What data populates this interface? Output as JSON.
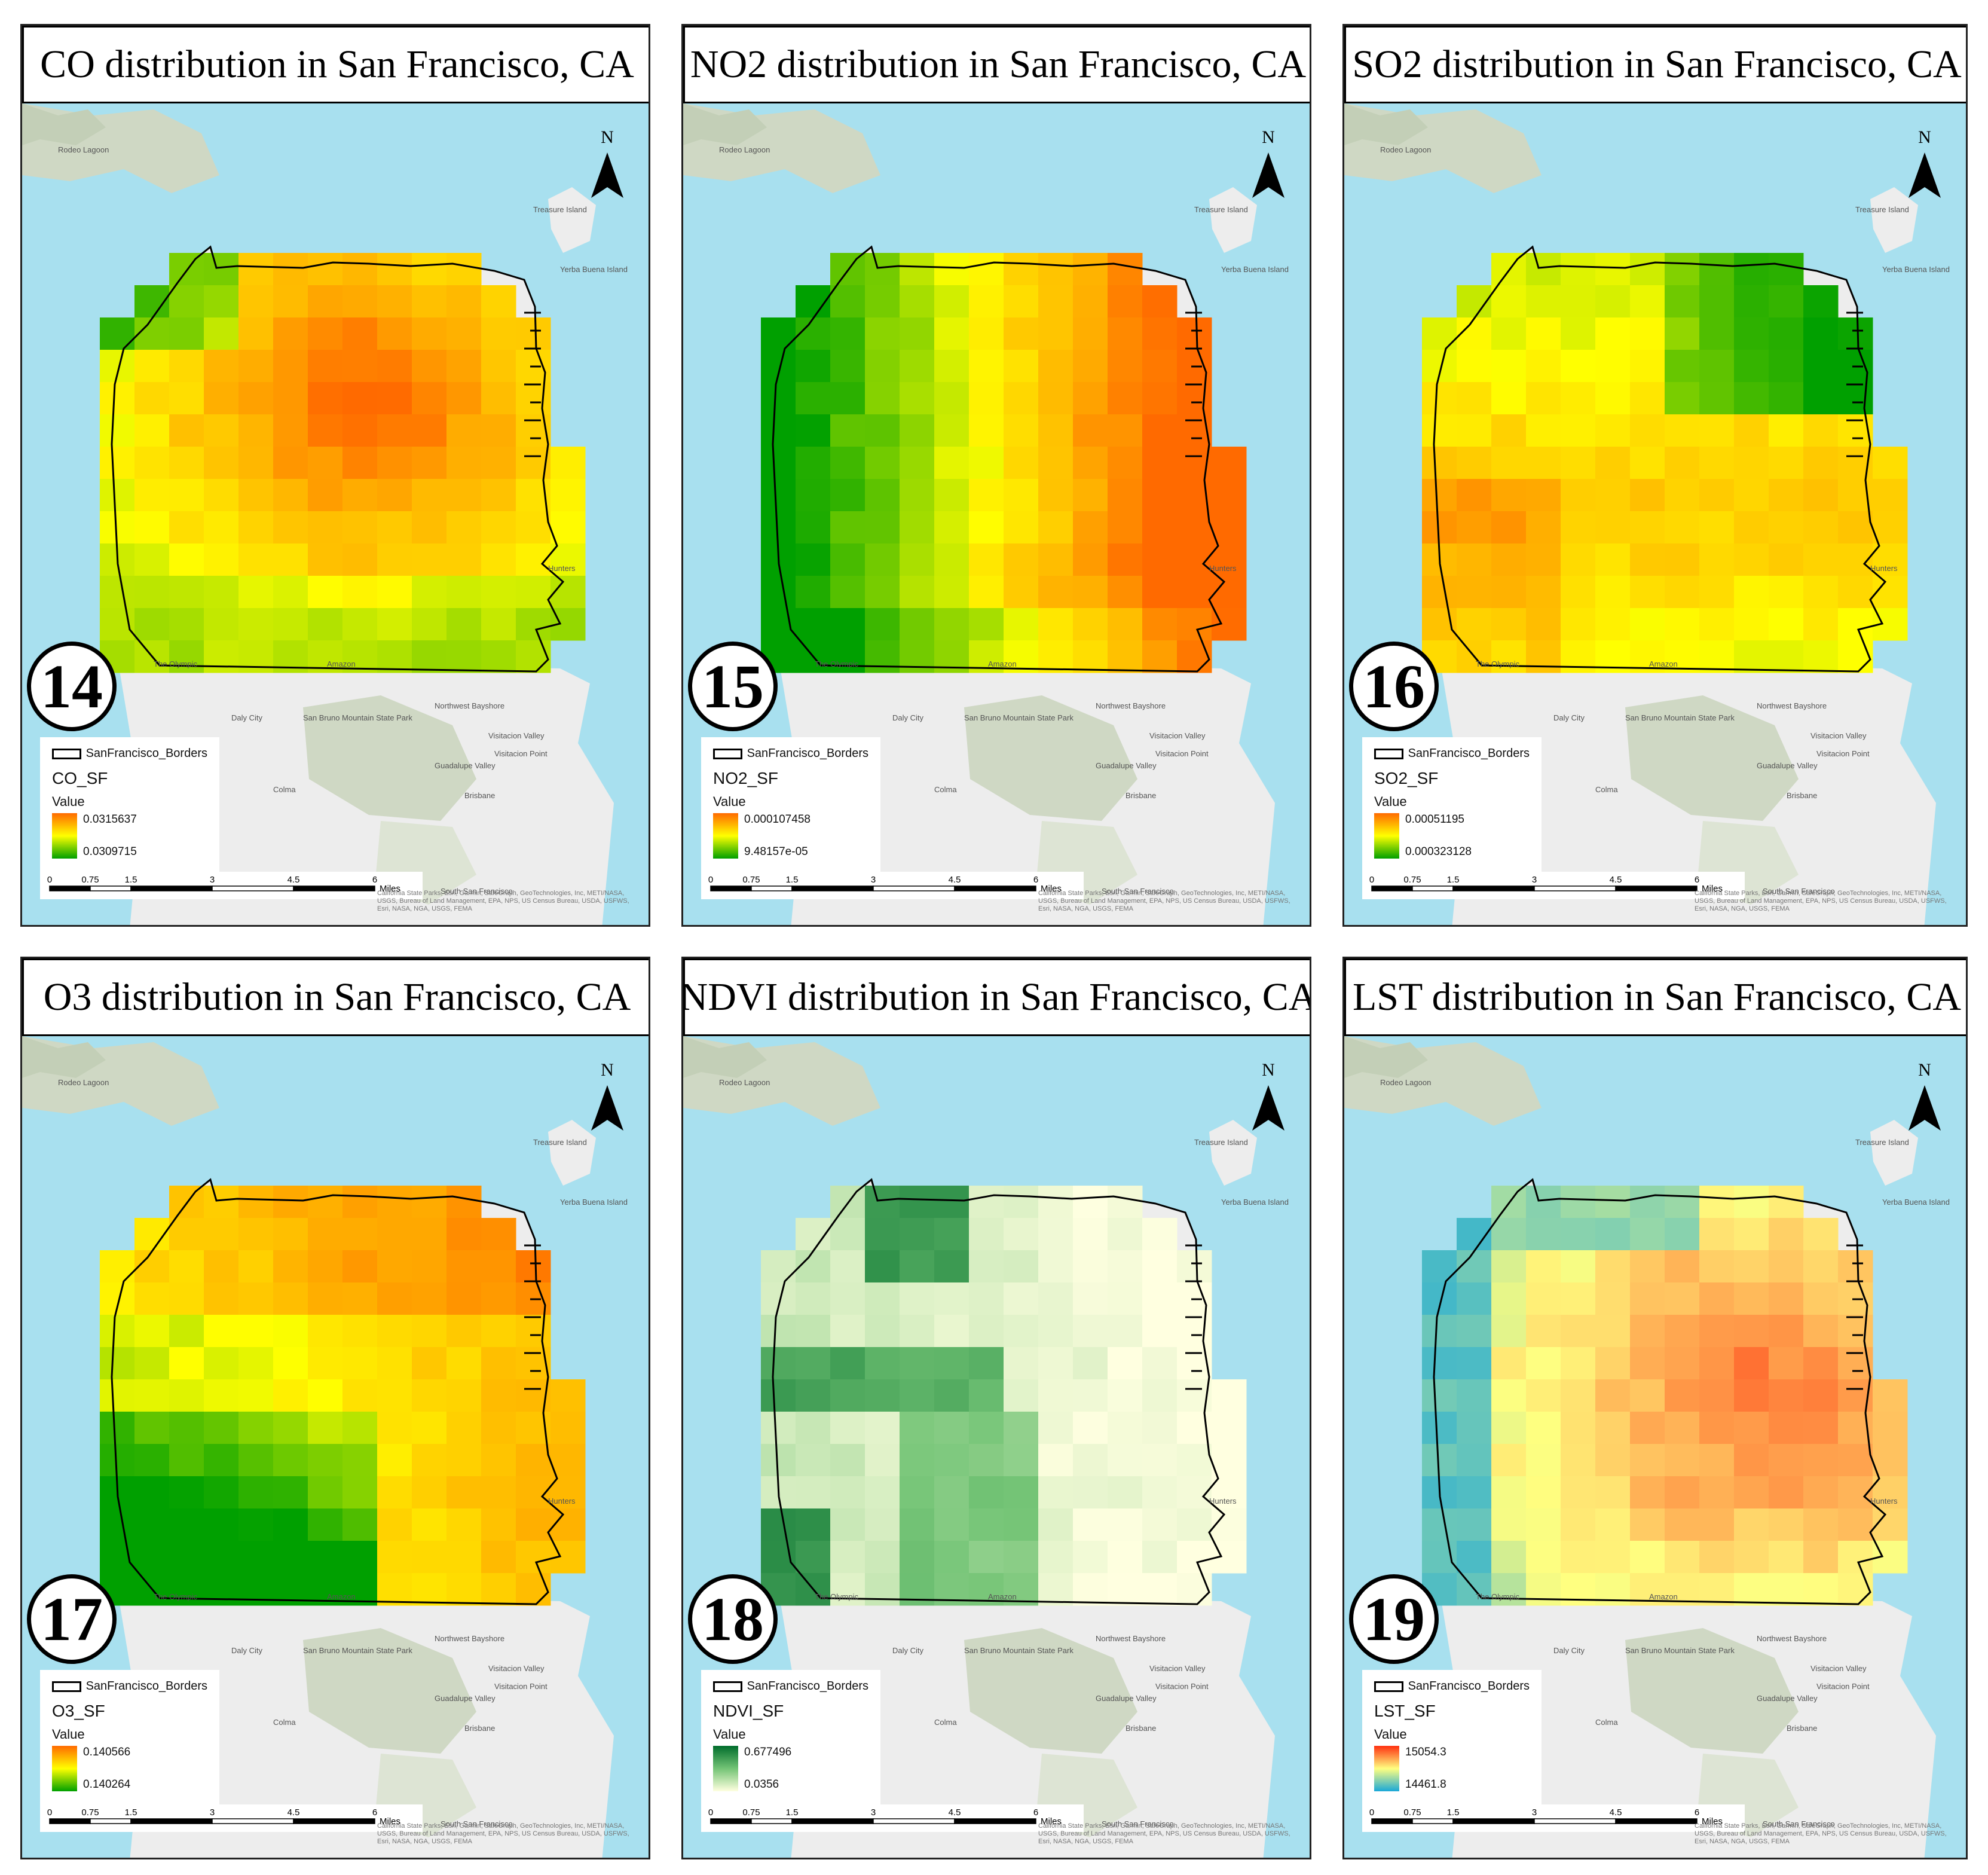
{
  "panels": [
    {
      "title": "CO distribution in San Francisco, CA",
      "number": "14",
      "layer": "CO_SF",
      "legend_border": "SanFrancisco_Borders",
      "value_label": "Value",
      "high": "0.0315637",
      "low": "0.0309715",
      "ramp": [
        "#ff6a00",
        "#ffff00",
        "#00a000"
      ],
      "field": "co"
    },
    {
      "title": "NO2 distribution in San Francisco, CA",
      "number": "15",
      "layer": "NO2_SF",
      "legend_border": "SanFrancisco_Borders",
      "value_label": "Value",
      "high": "0.000107458",
      "low": "9.48157e-05",
      "ramp": [
        "#ff6a00",
        "#ffff00",
        "#00a000"
      ],
      "field": "no2"
    },
    {
      "title": "SO2 distribution in San Francisco, CA",
      "number": "16",
      "layer": "SO2_SF",
      "legend_border": "SanFrancisco_Borders",
      "value_label": "Value",
      "high": "0.00051195",
      "low": "0.000323128",
      "ramp": [
        "#ff6a00",
        "#ffff00",
        "#00a000"
      ],
      "field": "so2"
    },
    {
      "title": "O3 distribution in San Francisco, CA",
      "number": "17",
      "layer": "O3_SF",
      "legend_border": "SanFrancisco_Borders",
      "value_label": "Value",
      "high": "0.140566",
      "low": "0.140264",
      "ramp": [
        "#ff6a00",
        "#ffff00",
        "#00a000"
      ],
      "field": "o3"
    },
    {
      "title": "NDVI distribution in San Francisco, CA",
      "number": "18",
      "layer": "NDVI_SF",
      "legend_border": "SanFrancisco_Borders",
      "value_label": "Value",
      "high": "0.677496",
      "low": "0.0356",
      "ramp": [
        "#006d2c",
        "#74c476",
        "#ffffe0"
      ],
      "field": "ndvi"
    },
    {
      "title": "LST distribution in San Francisco, CA",
      "number": "19",
      "layer": "LST_SF",
      "legend_border": "SanFrancisco_Borders",
      "value_label": "Value",
      "high": "15054.3",
      "low": "14461.8",
      "ramp": [
        "#ff3010",
        "#ffff80",
        "#1aa8d8"
      ],
      "field": "lst"
    }
  ],
  "scale": {
    "ticks": [
      "0",
      "0.75",
      "1.5",
      "3",
      "4.5",
      "6"
    ],
    "unit": "Miles"
  },
  "north_label": "N",
  "attribution": "California State Parks, Esri, Garmin, SafeGraph, GeoTechnologies, Inc, METI/NASA, USGS, Bureau of Land Management, EPA, NPS, US Census Bureau, USDA, USFWS, Esri, NASA, NGA, USGS, FEMA",
  "basemap_labels": [
    "Treasure Island",
    "Yerba Buena Island",
    "Daly City",
    "Colma",
    "Brisbane",
    "South San Francisco",
    "San Bruno Mountain State Park",
    "Visitacion Valley",
    "Guadalupe Valley",
    "Northwest Bayshore",
    "Visitacion Point",
    "Rodeo Lagoon",
    "Hunters",
    "The Olympic",
    "Amazon"
  ],
  "colors": {
    "water": "#a8e0ef",
    "land": "#ededed",
    "hills": "#cfd8c4",
    "border": "#000000"
  }
}
